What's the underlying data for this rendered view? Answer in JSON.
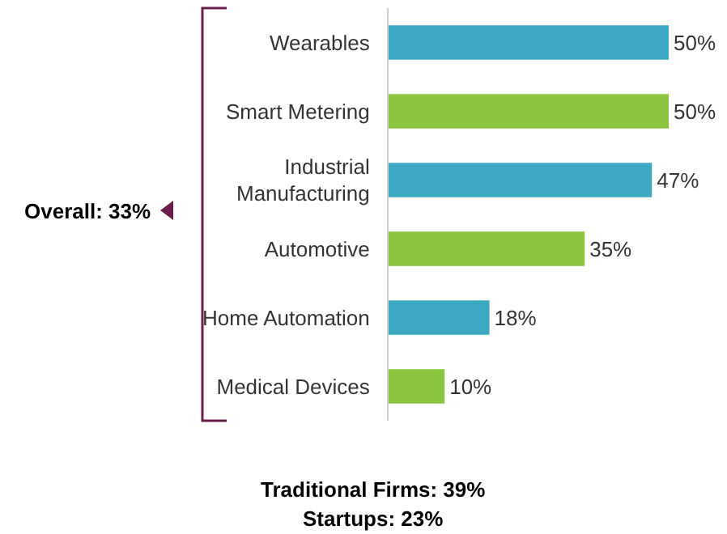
{
  "chart_data": {
    "type": "bar",
    "orientation": "horizontal",
    "categories": [
      "Wearables",
      "Smart Metering",
      "Industrial\nManufacturing",
      "Automotive",
      "Home Automation",
      "Medical Devices"
    ],
    "values": [
      50,
      50,
      47,
      35,
      18,
      10
    ],
    "value_labels": [
      "50%",
      "50%",
      "47%",
      "35%",
      "18%",
      "10%"
    ],
    "colors": [
      "#3aa9c1",
      "#8cc63f",
      "#3aa9c1",
      "#8cc63f",
      "#3aa9c1",
      "#8cc63f"
    ],
    "annotations": [
      "Overall: 33%",
      "Traditional Firms: 39%",
      "Startups: 23%"
    ],
    "legend": false
  }
}
